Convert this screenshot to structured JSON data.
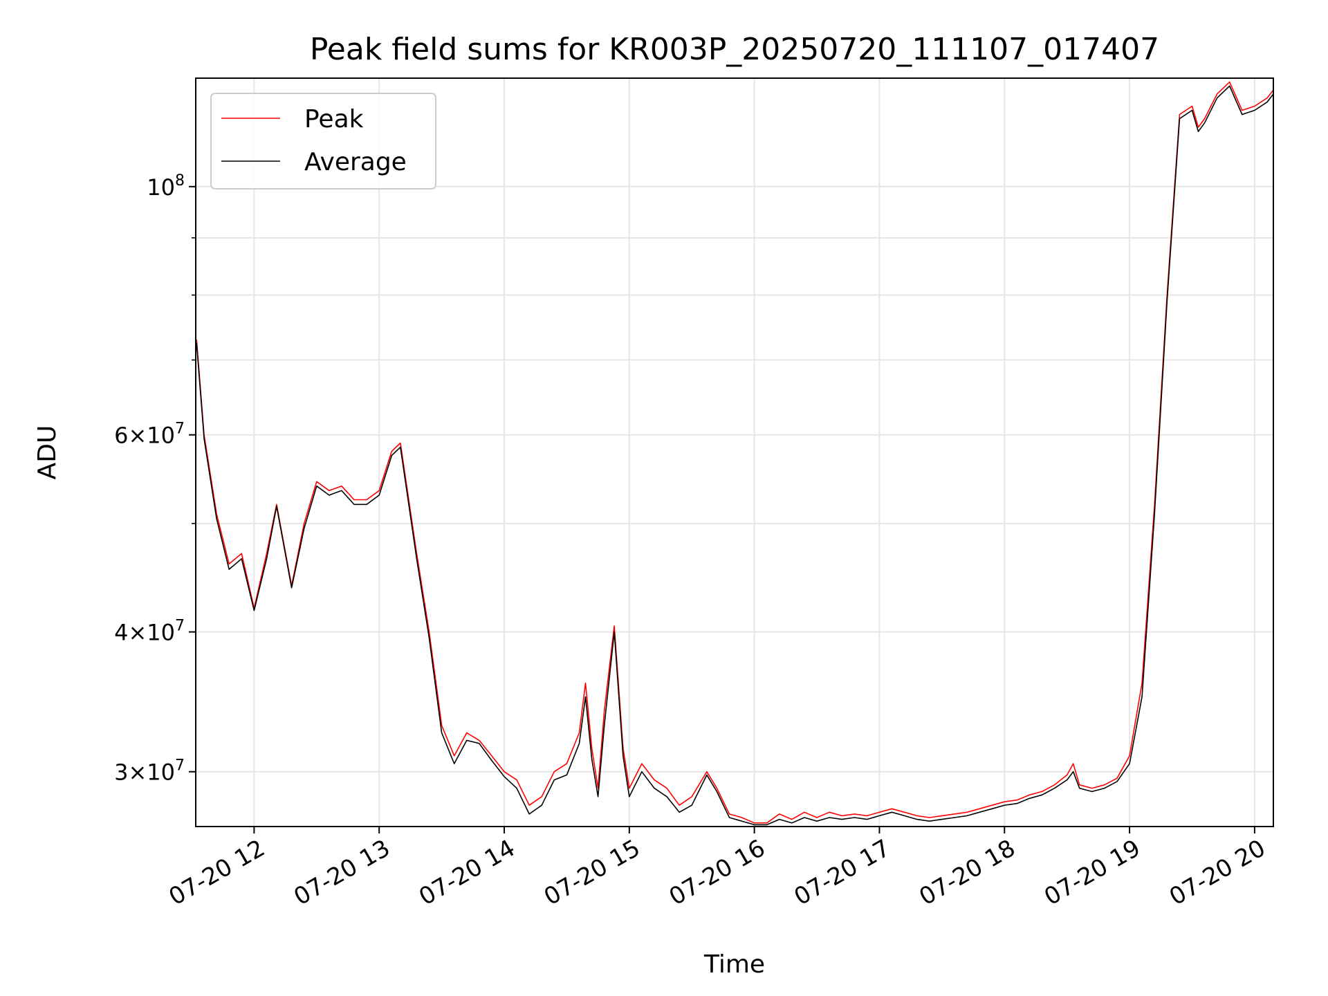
{
  "chart_data": {
    "type": "line",
    "title": "Peak field sums for KR003P_20250720_111107_017407",
    "xlabel": "Time",
    "ylabel": "ADU",
    "x_unit": "time of day (hours), 2025-07-20",
    "xlim": [
      "07-20 11:32",
      "07-20 20:09"
    ],
    "ylim": [
      26800000,
      125000000
    ],
    "yscale": "log",
    "grid": true,
    "legend_position": "top-left",
    "x_ticks": [
      "07-20 12",
      "07-20 13",
      "07-20 14",
      "07-20 15",
      "07-20 16",
      "07-20 17",
      "07-20 18",
      "07-20 19",
      "07-20 20"
    ],
    "y_ticks": [
      {
        "value": 30000000,
        "label": "3×10",
        "exp": "7"
      },
      {
        "value": 40000000,
        "label": "4×10",
        "exp": "7"
      },
      {
        "value": 60000000,
        "label": "6×10",
        "exp": "7"
      },
      {
        "value": 100000000,
        "label": "10",
        "exp": "8"
      }
    ],
    "y_minor_ticks": [
      50000000,
      70000000,
      80000000,
      90000000
    ],
    "series": [
      {
        "name": "Peak",
        "color": "#ff0000",
        "x": [
          11.54,
          11.6,
          11.7,
          11.8,
          11.9,
          12.0,
          12.1,
          12.18,
          12.3,
          12.4,
          12.5,
          12.6,
          12.7,
          12.8,
          12.9,
          13.0,
          13.1,
          13.17,
          13.3,
          13.4,
          13.5,
          13.6,
          13.7,
          13.8,
          13.9,
          14.0,
          14.1,
          14.2,
          14.3,
          14.4,
          14.5,
          14.6,
          14.65,
          14.7,
          14.75,
          14.8,
          14.88,
          14.95,
          15.0,
          15.1,
          15.2,
          15.3,
          15.4,
          15.5,
          15.62,
          15.7,
          15.8,
          15.9,
          16.0,
          16.1,
          16.2,
          16.3,
          16.4,
          16.5,
          16.6,
          16.7,
          16.8,
          16.9,
          17.0,
          17.1,
          17.2,
          17.3,
          17.4,
          17.5,
          17.6,
          17.7,
          17.8,
          17.9,
          18.0,
          18.1,
          18.2,
          18.3,
          18.4,
          18.5,
          18.55,
          18.6,
          18.7,
          18.8,
          18.9,
          19.0,
          19.1,
          19.2,
          19.3,
          19.4,
          19.5,
          19.55,
          19.6,
          19.7,
          19.8,
          19.9,
          20.0,
          20.1,
          20.15
        ],
        "y": [
          73000000,
          60000000,
          51000000,
          46000000,
          47000000,
          42000000,
          47000000,
          52000000,
          44000000,
          50000000,
          54500000,
          53500000,
          54000000,
          52500000,
          52500000,
          53500000,
          58000000,
          59000000,
          47000000,
          40000000,
          33000000,
          31000000,
          32500000,
          32000000,
          31000000,
          30000000,
          29500000,
          28000000,
          28500000,
          30000000,
          30500000,
          32500000,
          36000000,
          31500000,
          29000000,
          34000000,
          40500000,
          31500000,
          29000000,
          30500000,
          29500000,
          29000000,
          28000000,
          28500000,
          30000000,
          29000000,
          27500000,
          27300000,
          27000000,
          27000000,
          27500000,
          27200000,
          27600000,
          27300000,
          27600000,
          27400000,
          27500000,
          27400000,
          27600000,
          27800000,
          27600000,
          27400000,
          27300000,
          27400000,
          27500000,
          27600000,
          27800000,
          28000000,
          28200000,
          28300000,
          28600000,
          28800000,
          29200000,
          29800000,
          30500000,
          29200000,
          29000000,
          29200000,
          29600000,
          31000000,
          36000000,
          52000000,
          80000000,
          116000000,
          118000000,
          113000000,
          115000000,
          121000000,
          124000000,
          117000000,
          118000000,
          120000000,
          122000000
        ]
      },
      {
        "name": "Average",
        "color": "#000000",
        "x": [
          11.54,
          11.6,
          11.7,
          11.8,
          11.9,
          12.0,
          12.1,
          12.18,
          12.3,
          12.4,
          12.5,
          12.6,
          12.7,
          12.8,
          12.9,
          13.0,
          13.1,
          13.17,
          13.3,
          13.4,
          13.5,
          13.6,
          13.7,
          13.8,
          13.9,
          14.0,
          14.1,
          14.2,
          14.3,
          14.4,
          14.5,
          14.6,
          14.65,
          14.7,
          14.75,
          14.8,
          14.88,
          14.95,
          15.0,
          15.1,
          15.2,
          15.3,
          15.4,
          15.5,
          15.62,
          15.7,
          15.8,
          15.9,
          16.0,
          16.1,
          16.2,
          16.3,
          16.4,
          16.5,
          16.6,
          16.7,
          16.8,
          16.9,
          17.0,
          17.1,
          17.2,
          17.3,
          17.4,
          17.5,
          17.6,
          17.7,
          17.8,
          17.9,
          18.0,
          18.1,
          18.2,
          18.3,
          18.4,
          18.5,
          18.55,
          18.6,
          18.7,
          18.8,
          18.9,
          19.0,
          19.1,
          19.2,
          19.3,
          19.4,
          19.5,
          19.55,
          19.6,
          19.7,
          19.8,
          19.9,
          20.0,
          20.1,
          20.15
        ],
        "y": [
          72500000,
          59500000,
          50500000,
          45500000,
          46500000,
          41800000,
          46500000,
          51800000,
          43800000,
          49500000,
          54000000,
          53000000,
          53500000,
          52000000,
          52000000,
          53000000,
          57500000,
          58500000,
          46500000,
          39500000,
          32500000,
          30500000,
          32000000,
          31800000,
          30700000,
          29700000,
          29000000,
          27500000,
          28000000,
          29500000,
          29800000,
          31800000,
          35000000,
          30800000,
          28500000,
          33000000,
          40000000,
          31000000,
          28500000,
          30000000,
          29000000,
          28500000,
          27600000,
          28000000,
          29800000,
          28800000,
          27300000,
          27100000,
          26900000,
          26900000,
          27200000,
          27000000,
          27300000,
          27100000,
          27300000,
          27200000,
          27300000,
          27200000,
          27400000,
          27600000,
          27400000,
          27200000,
          27100000,
          27200000,
          27300000,
          27400000,
          27600000,
          27800000,
          28000000,
          28100000,
          28400000,
          28600000,
          29000000,
          29500000,
          30000000,
          29000000,
          28800000,
          29000000,
          29400000,
          30500000,
          35000000,
          51000000,
          79000000,
          115000000,
          117000000,
          112000000,
          114000000,
          120000000,
          123000000,
          116000000,
          117000000,
          119000000,
          121000000
        ]
      }
    ]
  }
}
